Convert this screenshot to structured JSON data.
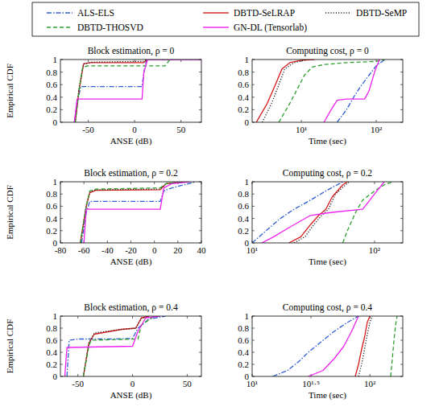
{
  "chart_data": [
    {
      "type": "line",
      "title": "Block estimation, ρ = 0",
      "x_label": "ANSE (dB)",
      "y_label": "Empirical CDF",
      "legend": "top",
      "xlim": [
        -80,
        72
      ],
      "ylim": [
        0,
        1
      ],
      "xticks": [
        -50,
        0,
        50
      ],
      "yticks": [
        0,
        0.2,
        0.4,
        0.6,
        0.8,
        1
      ],
      "series": [
        {
          "name": "ALS-ELS",
          "color": "#2f5fd0",
          "line_style": "dashdot",
          "x": [
            -65,
            -62,
            -58,
            8,
            10,
            13,
            72
          ],
          "values": [
            0,
            0.3,
            0.57,
            0.57,
            0.8,
            1,
            1
          ]
        },
        {
          "name": "DBTD-SeLRAP",
          "color": "#d91a1a",
          "line_style": "solid",
          "x": [
            -64,
            -60,
            -55,
            -48,
            10,
            13
          ],
          "values": [
            0,
            0.5,
            0.93,
            0.95,
            0.95,
            1
          ]
        },
        {
          "name": "DBTD-SeMP",
          "color": "#222222",
          "line_style": "dotted",
          "x": [
            -64,
            -60,
            -55,
            -45,
            10,
            13
          ],
          "values": [
            0,
            0.55,
            0.93,
            0.96,
            0.97,
            1
          ]
        },
        {
          "name": "DBTD-THOSVD",
          "color": "#2ca02c",
          "line_style": "dashed",
          "x": [
            -64,
            -60,
            -56,
            -50,
            33,
            38
          ],
          "values": [
            0,
            0.5,
            0.88,
            0.9,
            0.9,
            1
          ]
        },
        {
          "name": "GN-DL (Tensorlab)",
          "color": "#ee22ee",
          "line_style": "solid",
          "x": [
            -65,
            -62,
            8,
            10,
            14,
            72
          ],
          "values": [
            0,
            0.37,
            0.37,
            0.8,
            1,
            1
          ]
        }
      ]
    },
    {
      "type": "line",
      "title": "Computing cost, ρ = 0",
      "x_label": "Time (sec)",
      "log": "x",
      "xlim": [
        2.2,
        226
      ],
      "ylim": [
        0,
        1
      ],
      "xticks": [
        {
          "value": 10,
          "label": "10¹"
        },
        {
          "value": 100,
          "label": "10²"
        }
      ],
      "yticks": [
        0,
        0.2,
        0.4,
        0.6,
        0.8,
        1
      ],
      "series": [
        {
          "color": "#2f5fd0",
          "line_style": "dashdot",
          "x": [
            30,
            40,
            50,
            60,
            80,
            100,
            130
          ],
          "values": [
            0,
            0.2,
            0.4,
            0.55,
            0.75,
            0.9,
            1
          ]
        },
        {
          "color": "#d91a1a",
          "line_style": "solid",
          "x": [
            2.5,
            3.5,
            4.5,
            5.5,
            7,
            10,
            15
          ],
          "values": [
            0,
            0.3,
            0.6,
            0.85,
            0.95,
            0.99,
            1
          ]
        },
        {
          "color": "#222222",
          "line_style": "dotted",
          "x": [
            3,
            4,
            5,
            6,
            8,
            12
          ],
          "values": [
            0,
            0.3,
            0.6,
            0.85,
            0.95,
            1
          ]
        },
        {
          "color": "#2ca02c",
          "line_style": "dashed",
          "x": [
            5,
            7,
            9,
            11,
            14,
            20,
            40,
            100,
            130
          ],
          "values": [
            0,
            0.3,
            0.55,
            0.75,
            0.88,
            0.92,
            0.95,
            0.97,
            1
          ]
        },
        {
          "color": "#ee22ee",
          "line_style": "solid",
          "x": [
            20,
            25,
            30,
            40,
            70,
            80,
            95,
            110
          ],
          "values": [
            0,
            0.2,
            0.35,
            0.37,
            0.37,
            0.5,
            0.8,
            1
          ]
        }
      ]
    },
    {
      "type": "line",
      "title": "Block estimation, ρ = 0.2",
      "x_label": "ANSE (dB)",
      "y_label": "Empirical CDF",
      "xlim": [
        -80,
        40
      ],
      "ylim": [
        0,
        1
      ],
      "xticks": [
        -80,
        -60,
        -40,
        -20,
        0,
        20,
        40
      ],
      "yticks": [
        0,
        0.2,
        0.4,
        0.6,
        0.8,
        1
      ],
      "series": [
        {
          "color": "#2f5fd0",
          "line_style": "dashdot",
          "x": [
            -62,
            -58,
            -55,
            5,
            8,
            15,
            25,
            35
          ],
          "values": [
            0,
            0.5,
            0.68,
            0.68,
            0.85,
            0.9,
            0.95,
            1
          ]
        },
        {
          "color": "#d91a1a",
          "line_style": "solid",
          "x": [
            -63,
            -58,
            -55,
            -50,
            5,
            10,
            25
          ],
          "values": [
            0,
            0.6,
            0.82,
            0.86,
            0.87,
            0.97,
            1
          ]
        },
        {
          "color": "#222222",
          "line_style": "dotted",
          "x": [
            -63,
            -58,
            -55,
            -50,
            5,
            10,
            25
          ],
          "values": [
            0,
            0.62,
            0.83,
            0.87,
            0.88,
            0.97,
            1
          ]
        },
        {
          "color": "#2ca02c",
          "line_style": "dashed",
          "x": [
            -63,
            -58,
            -55,
            -50,
            5,
            10,
            25
          ],
          "values": [
            0,
            0.6,
            0.85,
            0.88,
            0.9,
            0.97,
            1
          ]
        },
        {
          "color": "#ee22ee",
          "line_style": "solid",
          "x": [
            -60,
            -58,
            5,
            8,
            15,
            30
          ],
          "values": [
            0,
            0.55,
            0.55,
            0.9,
            0.97,
            1
          ]
        }
      ]
    },
    {
      "type": "line",
      "title": "Computing cost, ρ = 0.2",
      "x_label": "Time (sec)",
      "log": "x",
      "xlim": [
        10,
        170
      ],
      "ylim": [
        0,
        1
      ],
      "xticks": [
        {
          "value": 10,
          "label": "10¹"
        },
        {
          "value": 100,
          "label": "10²"
        }
      ],
      "yticks": [
        0,
        0.2,
        0.4,
        0.6,
        0.8,
        1
      ],
      "series": [
        {
          "color": "#2f5fd0",
          "line_style": "dashdot",
          "x": [
            10,
            13,
            17,
            22,
            30,
            40,
            55
          ],
          "values": [
            0,
            0.2,
            0.4,
            0.55,
            0.7,
            0.85,
            1
          ]
        },
        {
          "color": "#d91a1a",
          "line_style": "solid",
          "x": [
            20,
            25,
            30,
            35,
            40,
            45,
            55,
            60
          ],
          "values": [
            0,
            0.1,
            0.3,
            0.45,
            0.55,
            0.75,
            0.95,
            1
          ]
        },
        {
          "color": "#222222",
          "line_style": "dotted",
          "x": [
            22,
            27,
            32,
            37,
            42,
            48,
            58,
            62
          ],
          "values": [
            0,
            0.1,
            0.3,
            0.45,
            0.55,
            0.8,
            0.95,
            1
          ]
        },
        {
          "color": "#2ca02c",
          "line_style": "dashed",
          "x": [
            55,
            60,
            70,
            80,
            100,
            120,
            140
          ],
          "values": [
            0,
            0.2,
            0.5,
            0.7,
            0.85,
            0.95,
            1
          ]
        },
        {
          "color": "#ee22ee",
          "line_style": "solid",
          "x": [
            12,
            15,
            20,
            30,
            45,
            80,
            100,
            120
          ],
          "values": [
            0,
            0.1,
            0.25,
            0.45,
            0.5,
            0.55,
            0.8,
            1
          ]
        }
      ]
    },
    {
      "type": "line",
      "title": "Block estimation, ρ = 0.4",
      "x_label": "ANSE (dB)",
      "y_label": "Empirical CDF",
      "xlim": [
        -66,
        63
      ],
      "ylim": [
        0,
        1
      ],
      "xticks": [
        -50,
        0,
        50
      ],
      "yticks": [
        0,
        0.2,
        0.4,
        0.6,
        0.8,
        1
      ],
      "series": [
        {
          "color": "#2f5fd0",
          "line_style": "dashdot",
          "x": [
            -60,
            -58,
            -50,
            -20,
            0,
            5,
            15,
            30
          ],
          "values": [
            0,
            0.6,
            0.62,
            0.62,
            0.63,
            0.8,
            0.95,
            1
          ]
        },
        {
          "color": "#d91a1a",
          "line_style": "solid",
          "x": [
            -45,
            -40,
            -35,
            -10,
            3,
            8,
            15
          ],
          "values": [
            0,
            0.55,
            0.7,
            0.78,
            0.8,
            0.97,
            1
          ]
        },
        {
          "color": "#222222",
          "line_style": "dotted",
          "x": [
            -45,
            -40,
            -35,
            -10,
            3,
            8,
            15
          ],
          "values": [
            0,
            0.55,
            0.72,
            0.78,
            0.8,
            0.96,
            1
          ]
        },
        {
          "color": "#2ca02c",
          "line_style": "dashed",
          "x": [
            -45,
            -40,
            -38,
            5,
            8,
            20
          ],
          "values": [
            0,
            0.5,
            0.6,
            0.62,
            0.85,
            1
          ]
        },
        {
          "color": "#ee22ee",
          "line_style": "solid",
          "x": [
            -62,
            -60,
            0,
            5,
            12,
            25
          ],
          "values": [
            0,
            0.48,
            0.5,
            0.75,
            0.97,
            1
          ]
        }
      ]
    },
    {
      "type": "line",
      "title": "Computing cost, ρ = 0.4",
      "x_label": "Time (sec)",
      "log": "x",
      "xlim": [
        10,
        190
      ],
      "ylim": [
        0,
        1
      ],
      "xticks": [
        {
          "value": 10,
          "label": "10¹"
        },
        {
          "value": 31.6,
          "label": "10¹·⁵"
        },
        {
          "value": 100,
          "label": "10²"
        }
      ],
      "yticks": [
        0,
        0.2,
        0.4,
        0.6,
        0.8,
        1
      ],
      "series": [
        {
          "color": "#2f5fd0",
          "line_style": "dashdot",
          "x": [
            15,
            20,
            25,
            30,
            40,
            50,
            65,
            80
          ],
          "values": [
            0,
            0.1,
            0.25,
            0.4,
            0.6,
            0.75,
            0.9,
            1
          ]
        },
        {
          "color": "#d91a1a",
          "line_style": "solid",
          "x": [
            75,
            80,
            85,
            90,
            95,
            100
          ],
          "values": [
            0,
            0.2,
            0.45,
            0.65,
            0.9,
            1
          ]
        },
        {
          "color": "#222222",
          "line_style": "dotted",
          "x": [
            80,
            85,
            90,
            95,
            100,
            105
          ],
          "values": [
            0,
            0.2,
            0.45,
            0.7,
            0.9,
            1
          ]
        },
        {
          "color": "#2ca02c",
          "line_style": "dashed",
          "x": [
            150,
            155,
            160,
            165,
            170
          ],
          "values": [
            0,
            0.3,
            0.6,
            0.85,
            1
          ]
        },
        {
          "color": "#ee22ee",
          "line_style": "solid",
          "x": [
            30,
            40,
            50,
            60,
            70,
            80
          ],
          "values": [
            0,
            0.1,
            0.3,
            0.5,
            0.75,
            1
          ]
        }
      ]
    }
  ]
}
